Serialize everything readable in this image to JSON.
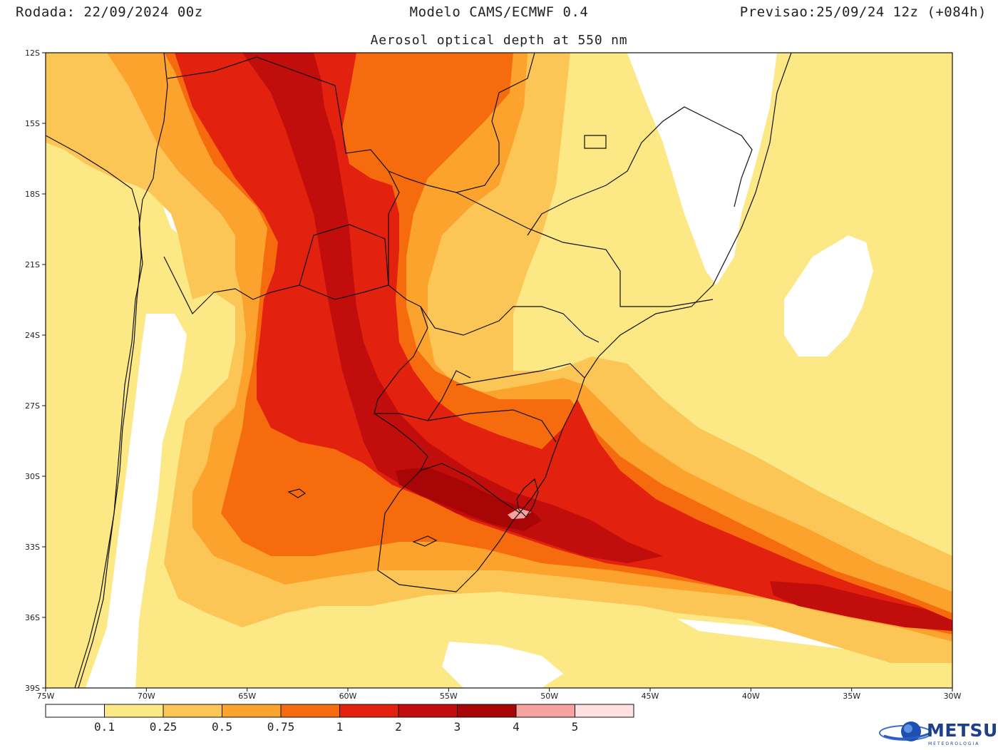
{
  "header": {
    "run": "Rodada: 22/09/2024 00z",
    "model": "Modelo CAMS/ECMWF 0.4",
    "forecast": "Previsao:25/09/24 12z (+084h)",
    "subtitle": "Aerosol optical depth at 550 nm"
  },
  "axes": {
    "lat_labels": [
      "12S",
      "15S",
      "18S",
      "21S",
      "24S",
      "27S",
      "30S",
      "33S",
      "36S",
      "39S"
    ],
    "lon_labels": [
      "75W",
      "70W",
      "65W",
      "60W",
      "55W",
      "50W",
      "45W",
      "40W",
      "35W",
      "30W"
    ],
    "lon_range": [
      -75,
      -30
    ],
    "lat_range": [
      -39,
      -12
    ]
  },
  "colorbar": {
    "colors": [
      "#ffffff",
      "#fde886",
      "#fcc657",
      "#fba32d",
      "#f56b0e",
      "#e2210f",
      "#c20d0d",
      "#a80606",
      "#f7a1a1",
      "#ffe0e0"
    ],
    "labels": [
      "0.1",
      "0.25",
      "0.5",
      "0.75",
      "1",
      "2",
      "3",
      "4",
      "5"
    ]
  },
  "colors": {
    "bg": "#fde886",
    "lev1": "#fcc657",
    "lev2": "#fba32d",
    "lev3": "#f56b0e",
    "lev4": "#e2210f",
    "lev5": "#c20d0d",
    "lev6": "#a80606",
    "lev7": "#f7a1a1",
    "white": "#ffffff"
  },
  "logo": {
    "name": "METSUL",
    "tagline": "METEOROLOGIA",
    "icon": "globe-icon"
  }
}
